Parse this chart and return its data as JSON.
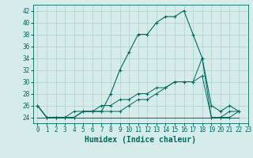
{
  "xlabel": "Humidex (Indice chaleur)",
  "background_color": "#d6ecea",
  "grid_color": "#aecfcc",
  "line_color": "#006860",
  "xlim": [
    -0.5,
    23
  ],
  "ylim": [
    23,
    43
  ],
  "yticks": [
    24,
    26,
    28,
    30,
    32,
    34,
    36,
    38,
    40,
    42
  ],
  "xticks": [
    0,
    1,
    2,
    3,
    4,
    5,
    6,
    7,
    8,
    9,
    10,
    11,
    12,
    13,
    14,
    15,
    16,
    17,
    18,
    19,
    20,
    21,
    22,
    23
  ],
  "series": [
    [
      26,
      24,
      24,
      24,
      24,
      25,
      25,
      25,
      28,
      32,
      35,
      38,
      38,
      40,
      41,
      41,
      42,
      38,
      34,
      26,
      25,
      26,
      25
    ],
    [
      26,
      24,
      24,
      24,
      24,
      25,
      25,
      25,
      25,
      25,
      26,
      27,
      27,
      28,
      29,
      30,
      30,
      30,
      31,
      24,
      24,
      24,
      25
    ],
    [
      26,
      24,
      24,
      24,
      25,
      25,
      25,
      26,
      26,
      27,
      27,
      28,
      28,
      29,
      29,
      30,
      30,
      30,
      34,
      24,
      24,
      25,
      25
    ],
    [
      24,
      24,
      24,
      24,
      24,
      24,
      24,
      24,
      24,
      24,
      24,
      24,
      24,
      24,
      24,
      24,
      24,
      24,
      24,
      24,
      24,
      24,
      24
    ]
  ],
  "xlabel_fontsize": 7,
  "tick_fontsize": 5.5
}
